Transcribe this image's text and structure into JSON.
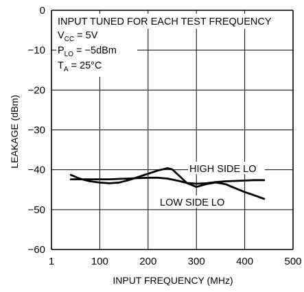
{
  "chart_data": {
    "type": "line",
    "xlabel": "INPUT FREQUENCY (MHz)",
    "ylabel": "LEAKAGE (dBm)",
    "xlim": [
      0,
      500
    ],
    "ylim": [
      -60,
      0
    ],
    "x_tick_values": [
      0,
      100,
      200,
      300,
      400,
      500
    ],
    "x_tick_labels": [
      "1",
      "100",
      "200",
      "300",
      "400",
      "500"
    ],
    "y_ticks": [
      0,
      -10,
      -20,
      -30,
      -40,
      -50,
      -60
    ],
    "y_tick_labels": [
      "0",
      "−10",
      "−20",
      "−30",
      "−40",
      "−50",
      "−60"
    ],
    "grid": true,
    "colors": {
      "line": "#000000",
      "grid": "#000000",
      "background": "#ffffff"
    },
    "annotation": {
      "line1": "INPUT TUNED FOR EACH TEST FREQUENCY",
      "vcc": {
        "main": "V",
        "sub": "CC",
        "rest": " = 5V"
      },
      "plo": {
        "main": "P",
        "sub": "LO",
        "rest": " = −5dBm"
      },
      "ta": {
        "main": "T",
        "sub": "A",
        "rest": " = 25°C"
      }
    },
    "series": [
      {
        "name": "HIGH SIDE LO",
        "x": [
          40,
          60,
          80,
          100,
          120,
          140,
          160,
          180,
          200,
          220,
          240,
          250,
          260,
          280,
          300,
          320,
          340,
          360,
          380,
          400,
          420,
          440
        ],
        "y": [
          -41.3,
          -42.3,
          -42.9,
          -43.2,
          -43.4,
          -43.2,
          -42.6,
          -41.8,
          -41.0,
          -40.2,
          -39.6,
          -39.9,
          -41.0,
          -43.3,
          -44.3,
          -43.6,
          -43.2,
          -43.6,
          -44.6,
          -45.6,
          -46.4,
          -47.3
        ]
      },
      {
        "name": "LOW SIDE LO",
        "x": [
          40,
          60,
          80,
          100,
          120,
          140,
          160,
          180,
          200,
          220,
          240,
          260,
          280,
          300,
          320,
          340,
          360,
          380,
          400,
          420,
          440
        ],
        "y": [
          -42.4,
          -42.4,
          -42.4,
          -42.4,
          -42.4,
          -42.3,
          -42.2,
          -42.1,
          -42.0,
          -42.0,
          -42.2,
          -42.7,
          -43.3,
          -43.5,
          -43.4,
          -43.1,
          -42.9,
          -42.8,
          -42.7,
          -42.6,
          -42.6
        ]
      }
    ]
  }
}
